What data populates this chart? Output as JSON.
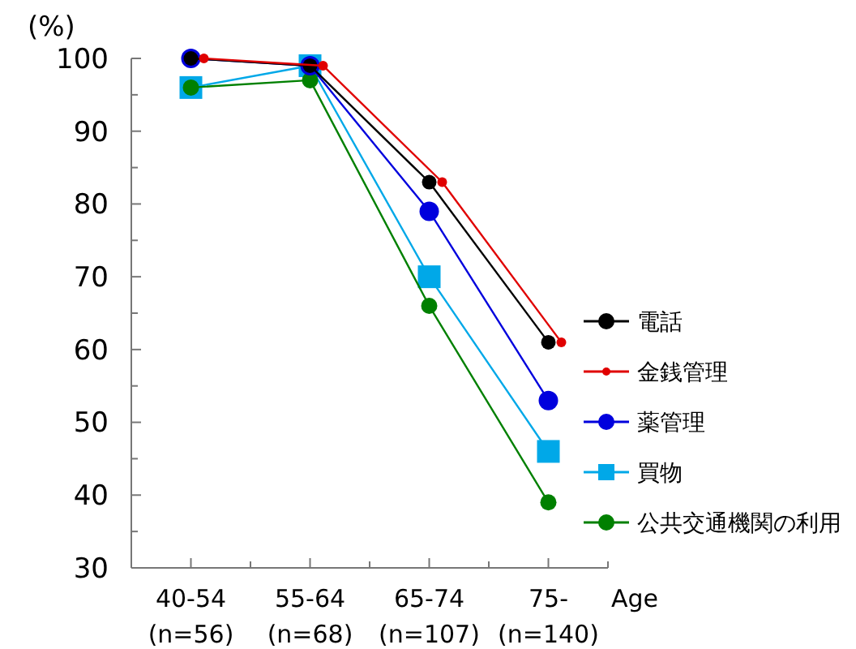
{
  "chart_data": {
    "type": "line",
    "ylabel": "(%)",
    "xlabel": "Age",
    "categories": [
      "40-54\n(n=56)",
      "55-64\n(n=68)",
      "65-74\n(n=107)",
      "75-\n(n=140)"
    ],
    "series": [
      {
        "name": "電話",
        "color": "#000000",
        "marker": "circle",
        "values": [
          100,
          99,
          83,
          61
        ]
      },
      {
        "name": "金銭管理",
        "color": "#e00000",
        "marker": "circle",
        "values": [
          100,
          99,
          83,
          61
        ]
      },
      {
        "name": "薬管理",
        "color": "#0000dd",
        "marker": "circle",
        "values": [
          100,
          99,
          79,
          53
        ]
      },
      {
        "name": "買物",
        "color": "#00a8e8",
        "marker": "square",
        "values": [
          96,
          99,
          70,
          46
        ]
      },
      {
        "name": "公共交通機関の利用",
        "color": "#008000",
        "marker": "circle",
        "values": [
          96,
          97,
          66,
          39
        ]
      }
    ],
    "ylim": [
      30,
      100
    ],
    "yticks": [
      30,
      {
        "value": 35,
        "label": null
      },
      40,
      {
        "value": 45,
        "label": null
      },
      50,
      {
        "value": 55,
        "label": null
      },
      60,
      {
        "value": 65,
        "label": null
      },
      70,
      {
        "value": 75,
        "label": null
      },
      80,
      {
        "value": 85,
        "label": null
      },
      90,
      {
        "value": 95,
        "label": null
      },
      100
    ],
    "grid": false,
    "legend": "right",
    "line_style": "solid"
  }
}
